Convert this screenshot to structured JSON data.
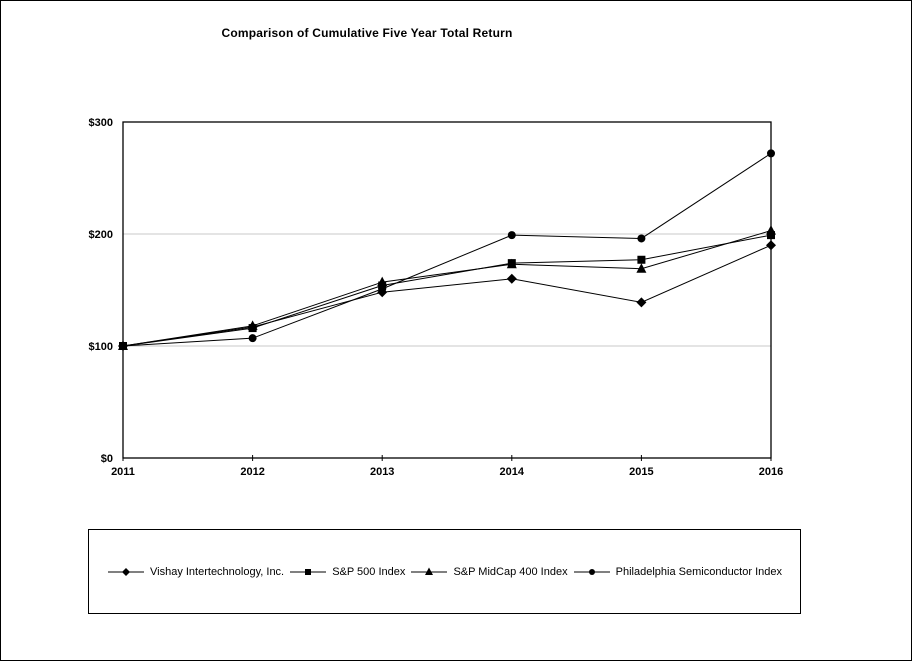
{
  "chart_data": {
    "type": "line",
    "title": "Comparison of Cumulative Five Year Total Return",
    "x": [
      "2011",
      "2012",
      "2013",
      "2014",
      "2015",
      "2016"
    ],
    "series": [
      {
        "name": "Vishay Intertechnology, Inc.",
        "marker": "diamond",
        "values": [
          100,
          117,
          148,
          160,
          139,
          190
        ]
      },
      {
        "name": "S&P 500 Index",
        "marker": "square",
        "values": [
          100,
          116,
          154,
          174,
          177,
          199
        ]
      },
      {
        "name": "S&P MidCap 400 Index",
        "marker": "triangle",
        "values": [
          100,
          118,
          157,
          173,
          169,
          203
        ]
      },
      {
        "name": "Philadelphia Semiconductor Index",
        "marker": "circle",
        "values": [
          100,
          107,
          151,
          199,
          196,
          272
        ]
      }
    ],
    "xlabel": "",
    "ylabel": "",
    "ylim": [
      0,
      300
    ],
    "yticks": [
      {
        "value": 0,
        "label": "$0"
      },
      {
        "value": 100,
        "label": "$100"
      },
      {
        "value": 200,
        "label": "$200"
      },
      {
        "value": 300,
        "label": "$300"
      }
    ],
    "grid": "horizontal gridlines at $100 and $200",
    "legend_position": "bottom boxed row",
    "colors": {
      "series": "#000000",
      "grid": "#c9c9c9",
      "background": "#ffffff",
      "border": "#000000"
    }
  }
}
